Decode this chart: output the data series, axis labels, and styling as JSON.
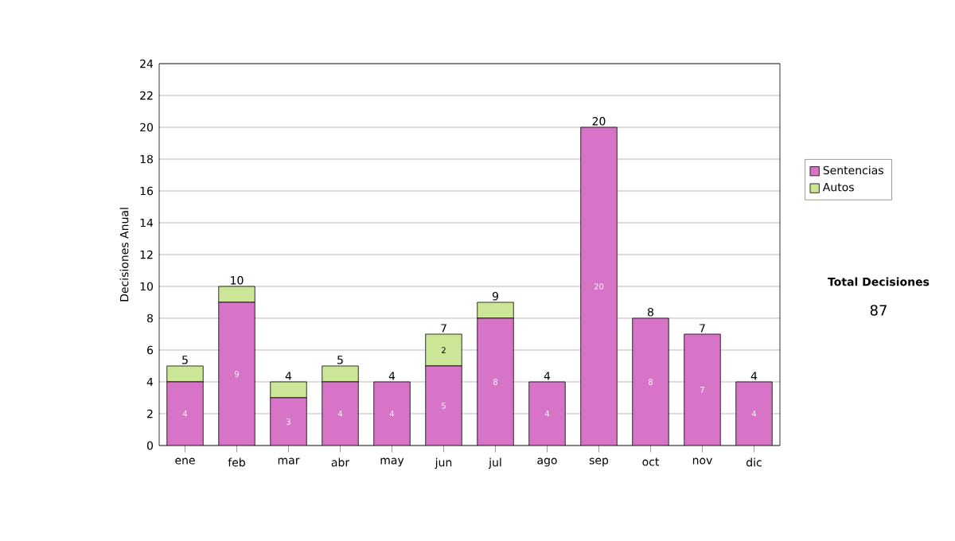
{
  "chart_data": {
    "type": "bar",
    "stacked": true,
    "ylabel": "Decisiones Anual",
    "categories": [
      "ene",
      "feb",
      "mar",
      "abr",
      "may",
      "jun",
      "jul",
      "ago",
      "sep",
      "oct",
      "nov",
      "dic"
    ],
    "series": [
      {
        "name": "Sentencias",
        "color": "#d774c8",
        "values": [
          4,
          9,
          3,
          4,
          4,
          5,
          8,
          4,
          20,
          8,
          7,
          4
        ],
        "value_labels": [
          "4",
          "9",
          "3",
          "4",
          "4",
          "5",
          "8",
          "4",
          "20",
          "8",
          "7",
          "4"
        ]
      },
      {
        "name": "Autos",
        "color": "#cce698",
        "values": [
          1,
          1,
          1,
          1,
          0,
          2,
          1,
          0,
          0,
          0,
          0,
          0
        ],
        "value_labels": [
          null,
          null,
          null,
          null,
          null,
          "2",
          null,
          null,
          null,
          null,
          null,
          null
        ]
      }
    ],
    "totals": [
      "5",
      "10",
      "4",
      "5",
      "4",
      "7",
      "9",
      "4",
      "20",
      "8",
      "7",
      "4"
    ],
    "ylim": [
      0,
      24
    ],
    "yticks": [
      0,
      2,
      4,
      6,
      8,
      10,
      12,
      14,
      16,
      18,
      20,
      22,
      24
    ],
    "grid": "y",
    "legend": "right",
    "annotations": [
      "Total Decisiones",
      "87"
    ]
  }
}
